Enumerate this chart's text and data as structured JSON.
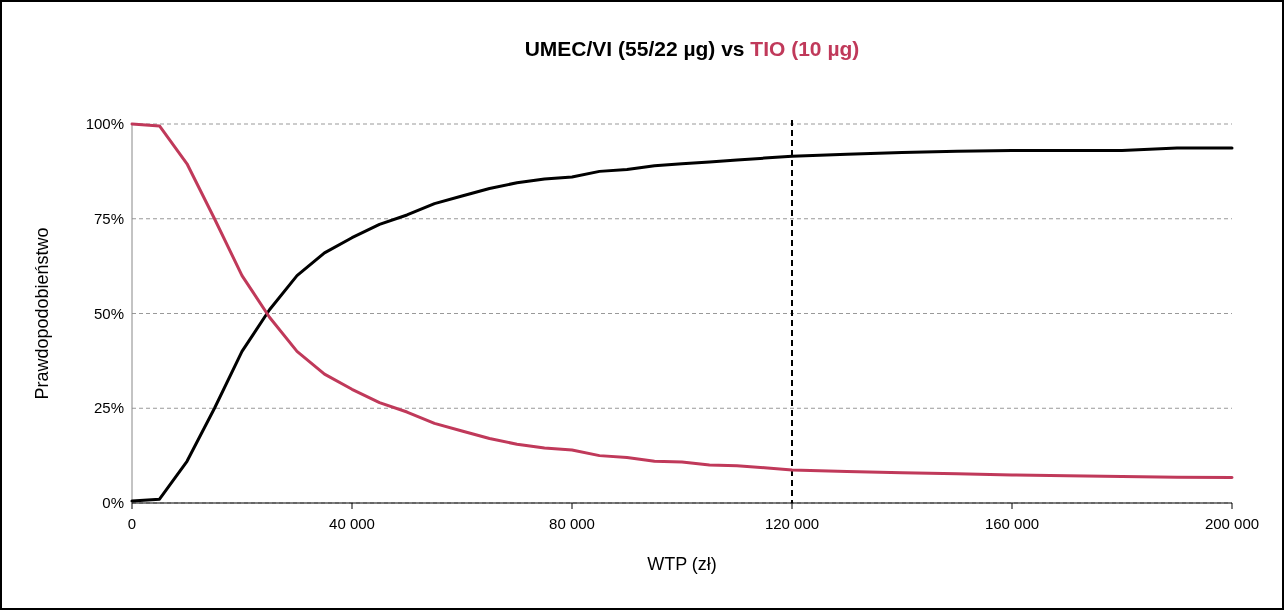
{
  "chart_data": {
    "type": "line",
    "title": "vs",
    "xlabel": "WTP (zł)",
    "ylabel": "Prawdopodobieństwo",
    "x": [
      0,
      5000,
      10000,
      15000,
      20000,
      25000,
      30000,
      35000,
      40000,
      45000,
      50000,
      55000,
      60000,
      65000,
      70000,
      75000,
      80000,
      85000,
      90000,
      95000,
      100000,
      105000,
      110000,
      115000,
      120000,
      130000,
      140000,
      150000,
      160000,
      170000,
      180000,
      190000,
      200000
    ],
    "series": [
      {
        "name": "UMEC/VI (55/22 µg)",
        "color": "#000000",
        "values": [
          0.5,
          1,
          11,
          25,
          40,
          51,
          60,
          66,
          70,
          73.5,
          76,
          79,
          81,
          83,
          84.5,
          85.5,
          86,
          87.5,
          88,
          89,
          89.5,
          90,
          90.5,
          91,
          91.5,
          92,
          92.5,
          92.8,
          93,
          93,
          93,
          93.7,
          93.7
        ]
      },
      {
        "name": "TIO (10 µg)",
        "color": "#c0395a",
        "values": [
          100,
          99.5,
          89.5,
          75,
          60,
          49,
          40,
          34,
          30,
          26.5,
          24,
          21,
          19,
          17,
          15.5,
          14.5,
          14,
          12.5,
          12,
          11,
          10.8,
          10,
          9.8,
          9.3,
          8.7,
          8.3,
          8,
          7.7,
          7.4,
          7.2,
          7,
          6.8,
          6.7
        ]
      }
    ],
    "xlim": [
      0,
      200000
    ],
    "xticks": [
      0,
      {
        "value": 40000,
        "label": "40 000"
      },
      {
        "value": 80000,
        "label": "80 000"
      },
      {
        "value": 120000,
        "label": "120 000"
      },
      {
        "value": 160000,
        "label": "160 000"
      },
      {
        "value": 200000,
        "label": "200 000"
      }
    ],
    "ylim": [
      0,
      100
    ],
    "yticks": [
      {
        "value": 0,
        "label": "0%"
      },
      {
        "value": 25,
        "label": "25%"
      },
      {
        "value": 50,
        "label": "50%"
      },
      {
        "value": 75,
        "label": "75%"
      },
      {
        "value": 100,
        "label": "100%"
      }
    ],
    "grid": "y",
    "legend": false,
    "marker": "none",
    "line_style": "solid",
    "ref_lines": [
      {
        "axis": "x",
        "value": 120000,
        "color": "#000000",
        "line_style": "dashed"
      }
    ]
  }
}
